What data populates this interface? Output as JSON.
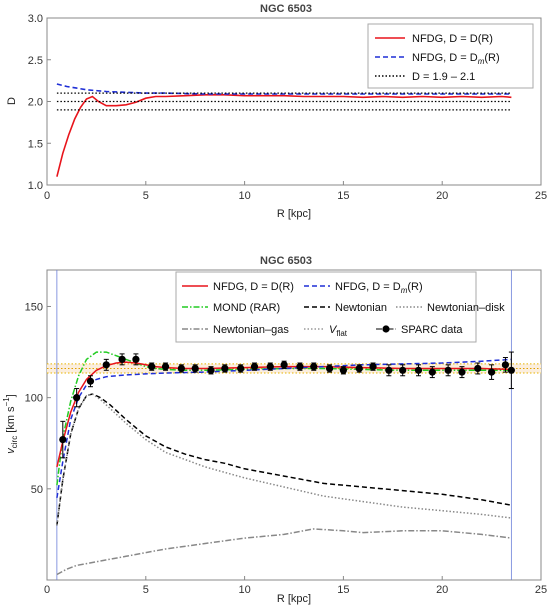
{
  "chart_data": [
    {
      "type": "line",
      "title": "NGC 6503",
      "xlabel": "R [kpc]",
      "ylabel": "D",
      "xlim": [
        0,
        25
      ],
      "ylim": [
        1.0,
        3.0
      ],
      "xticks": [
        0,
        5,
        10,
        15,
        20,
        25
      ],
      "yticks": [
        1.0,
        1.5,
        2.0,
        2.5,
        3.0
      ],
      "xtick_labels": [
        "0",
        "5",
        "10",
        "15",
        "20",
        "25"
      ],
      "ytick_labels": [
        "1.0",
        "1.5",
        "2.0",
        "2.5",
        "3.0"
      ],
      "legend_position": "top-right",
      "legend": [
        {
          "label": "NFDG, D = D(R)",
          "color": "#e8141b",
          "style": "solid"
        },
        {
          "label": "NFDG, D = D",
          "sub": "m",
          "suffix": "(R)",
          "color": "#1f2fd6",
          "style": "dashed"
        },
        {
          "label": "D = 1.9 – 2.1",
          "color": "#000000",
          "style": "dotted"
        }
      ],
      "series": [
        {
          "color": "#e8141b",
          "style": "solid",
          "x": [
            0.5,
            0.8,
            1.1,
            1.4,
            1.7,
            2.0,
            2.3,
            2.6,
            3.0,
            3.5,
            4.0,
            4.5,
            5.0,
            5.5,
            6.0,
            7.0,
            8.0,
            9.0,
            10.0,
            11.0,
            12.0,
            13.0,
            14.0,
            15.0,
            16.0,
            17.0,
            18.0,
            19.0,
            20.0,
            21.0,
            22.0,
            23.0,
            23.5
          ],
          "y": [
            1.1,
            1.38,
            1.6,
            1.79,
            1.93,
            2.03,
            2.06,
            2.0,
            1.95,
            1.95,
            1.96,
            1.99,
            2.04,
            2.06,
            2.06,
            2.07,
            2.08,
            2.08,
            2.07,
            2.07,
            2.07,
            2.06,
            2.06,
            2.06,
            2.05,
            2.06,
            2.05,
            2.06,
            2.05,
            2.06,
            2.05,
            2.06,
            2.05
          ]
        },
        {
          "color": "#1f2fd6",
          "style": "dashed",
          "x": [
            0.5,
            1.0,
            1.5,
            2.0,
            3.0,
            4.0,
            5.0,
            6.0,
            8.0,
            10.0,
            12.0,
            14.0,
            16.0,
            18.0,
            20.0,
            22.0,
            23.5
          ],
          "y": [
            2.21,
            2.18,
            2.16,
            2.14,
            2.12,
            2.11,
            2.1,
            2.1,
            2.09,
            2.09,
            2.09,
            2.09,
            2.09,
            2.09,
            2.09,
            2.09,
            2.09
          ]
        },
        {
          "color": "#000000",
          "style": "dotted",
          "x": [
            0.5,
            23.5
          ],
          "y": [
            1.9,
            1.9
          ]
        },
        {
          "color": "#000000",
          "style": "dotted",
          "x": [
            0.5,
            23.5
          ],
          "y": [
            2.0,
            2.0
          ]
        },
        {
          "color": "#000000",
          "style": "dotted",
          "x": [
            0.5,
            23.5
          ],
          "y": [
            2.1,
            2.1
          ]
        }
      ]
    },
    {
      "type": "line",
      "title": "NGC 6503",
      "xlabel": "R [kpc]",
      "ylabel": "v",
      "ylabel_sub": "circ",
      "ylabel_unit": " [km s",
      "ylabel_sup": "−1",
      "ylabel_end": "]",
      "xlim": [
        0,
        25
      ],
      "ylim": [
        0,
        170
      ],
      "xticks": [
        0,
        5,
        10,
        15,
        20,
        25
      ],
      "yticks": [
        50,
        100,
        150
      ],
      "xtick_labels": [
        "0",
        "5",
        "10",
        "15",
        "20",
        "25"
      ],
      "ytick_labels": [
        "50",
        "100",
        "150"
      ],
      "legend_position": "top",
      "legend": [
        {
          "label": "NFDG, D = D(R)",
          "color": "#e8141b",
          "style": "solid"
        },
        {
          "label": "NFDG, D = D",
          "sub": "m",
          "suffix": "(R)",
          "color": "#1f2fd6",
          "style": "dashed"
        },
        {
          "label": "MOND (RAR)",
          "color": "#22cc22",
          "style": "dashdot"
        },
        {
          "label": "Newtonian",
          "color": "#000000",
          "style": "dashed"
        },
        {
          "label": "Newtonian–disk",
          "color": "#888888",
          "style": "dotted"
        },
        {
          "label": "Newtonian–gas",
          "color": "#888888",
          "style": "dashdot"
        },
        {
          "label": "V",
          "sub": "flat",
          "suffix": "",
          "color": "#999999",
          "style": "dotted"
        },
        {
          "label": "SPARC data",
          "color": "#000000",
          "style": "marker"
        }
      ],
      "vflat_band": {
        "center": 116.0,
        "halfwidth": 2.5
      },
      "series": [
        {
          "name": "MOND (RAR)",
          "color": "#22cc22",
          "style": "dashdot",
          "x": [
            0.5,
            0.8,
            1.2,
            1.6,
            2.0,
            2.5,
            3.0,
            3.5,
            4.0,
            4.5,
            5.0,
            5.5,
            6.0,
            7.0,
            8.0,
            10.0,
            12.0,
            14.0,
            16.0,
            18.0,
            20.0,
            22.0,
            23.5
          ],
          "y": [
            52,
            78,
            98,
            112,
            121,
            125,
            125,
            123,
            121,
            119,
            117,
            116,
            115.5,
            115,
            115,
            115.5,
            116,
            116,
            115.5,
            115,
            115,
            115,
            115
          ]
        },
        {
          "name": "NFDG, D = D(R)",
          "color": "#e8141b",
          "style": "solid",
          "x": [
            0.5,
            0.8,
            1.2,
            1.6,
            2.0,
            2.5,
            3.0,
            3.5,
            4.0,
            4.5,
            5.0,
            5.5,
            6.0,
            7.0,
            8.0,
            10.0,
            12.0,
            14.0,
            16.0,
            18.0,
            20.0,
            22.0,
            23.5
          ],
          "y": [
            62,
            76,
            92,
            103,
            110,
            115,
            117.5,
            119,
            119.5,
            119,
            118,
            117,
            116.5,
            116,
            116,
            116.5,
            117,
            117,
            116.5,
            116,
            116,
            116,
            115.5
          ]
        },
        {
          "name": "NFDG, D = D_m(R)",
          "color": "#1f2fd6",
          "style": "dashed",
          "x": [
            0.5,
            0.8,
            1.2,
            1.6,
            2.0,
            2.5,
            3.0,
            4.0,
            5.0,
            6.0,
            8.0,
            10.0,
            12.0,
            14.0,
            16.0,
            18.0,
            20.0,
            22.0,
            23.5
          ],
          "y": [
            45,
            65,
            88,
            100,
            107,
            110,
            111.5,
            112.5,
            113,
            113.5,
            114,
            115,
            116,
            117,
            118,
            118.5,
            119,
            120,
            121
          ]
        },
        {
          "name": "Newtonian",
          "color": "#000000",
          "style": "dashed",
          "x": [
            0.5,
            0.8,
            1.2,
            1.6,
            2.0,
            2.3,
            2.7,
            3.2,
            4.0,
            5.0,
            6.0,
            7.0,
            8.0,
            9.0,
            10.0,
            12.0,
            14.0,
            16.0,
            18.0,
            20.0,
            22.0,
            23.5
          ],
          "y": [
            30,
            55,
            80,
            94,
            101,
            102,
            100,
            96,
            88,
            79,
            73,
            69,
            66,
            64,
            61,
            57,
            53,
            51,
            49,
            47,
            44,
            41
          ]
        },
        {
          "name": "Newtonian–disk",
          "color": "#888888",
          "style": "dotted",
          "x": [
            0.5,
            0.8,
            1.2,
            1.6,
            2.0,
            2.3,
            2.7,
            3.2,
            4.0,
            5.0,
            6.0,
            7.0,
            8.0,
            9.0,
            10.0,
            12.0,
            14.0,
            16.0,
            18.0,
            20.0,
            22.0,
            23.5
          ],
          "y": [
            30,
            55,
            80,
            94,
            101,
            102,
            99,
            94,
            86,
            77,
            70,
            66,
            62,
            59,
            56,
            51,
            46,
            43,
            40,
            38,
            36,
            34
          ]
        },
        {
          "name": "Newtonian–gas",
          "color": "#888888",
          "style": "dashdot",
          "x": [
            0.5,
            1.0,
            1.5,
            2.0,
            3.0,
            4.0,
            5.0,
            6.0,
            8.0,
            10.0,
            12.0,
            13.5,
            15.0,
            16.0,
            18.0,
            20.0,
            22.0,
            23.5
          ],
          "y": [
            3,
            6,
            8,
            9,
            11,
            13,
            15,
            17,
            20,
            23,
            25,
            28,
            27,
            26,
            27,
            27,
            25,
            23
          ]
        }
      ],
      "sparc_data": {
        "x": [
          0.8,
          1.5,
          2.2,
          3.0,
          3.8,
          4.5,
          5.3,
          6.0,
          6.8,
          7.5,
          8.3,
          9.0,
          9.8,
          10.5,
          11.3,
          12.0,
          12.8,
          13.5,
          14.3,
          15.0,
          15.8,
          16.5,
          17.3,
          18.0,
          18.8,
          19.5,
          20.3,
          21.0,
          21.8,
          22.5,
          23.2,
          23.5
        ],
        "y": [
          77,
          100,
          109,
          118,
          121,
          121,
          117,
          117,
          116,
          116,
          115,
          116,
          116,
          117,
          117,
          118,
          117,
          117,
          116,
          115,
          116,
          117,
          115,
          115,
          115,
          114,
          115,
          114,
          116,
          114,
          118,
          115
        ],
        "err": [
          10,
          5,
          3,
          3,
          3,
          3,
          2,
          2,
          2,
          2,
          2,
          2,
          2,
          2,
          2,
          2,
          2,
          2,
          2,
          2,
          2,
          2,
          3,
          3,
          3,
          3,
          3,
          3,
          3,
          4,
          4,
          10
        ]
      },
      "vertical_lines": [
        0.5,
        23.5
      ]
    }
  ]
}
